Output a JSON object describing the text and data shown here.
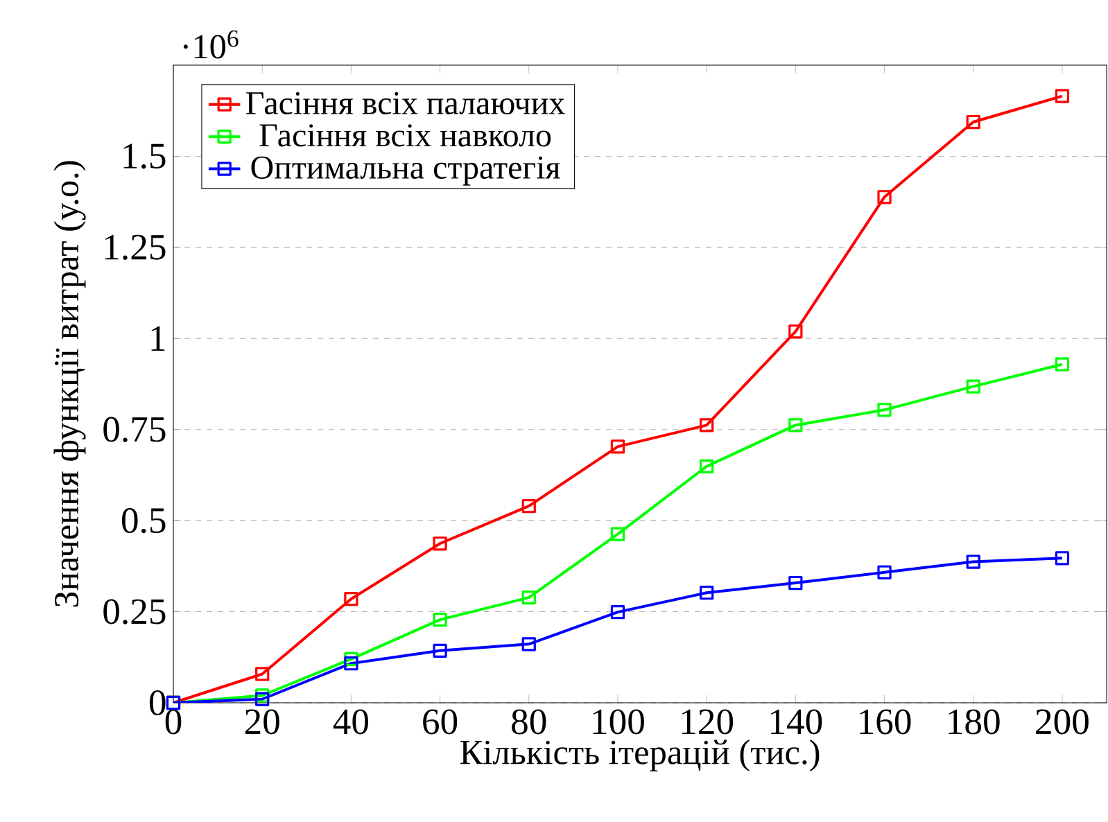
{
  "chart_data": {
    "type": "line",
    "xlabel": "Кількість ітерацій (тис.)",
    "ylabel": "Значення функції витрат (у.о.)",
    "annotations": [
      "·10$^{6}$"
    ],
    "x": [
      0,
      20,
      40,
      60,
      80,
      100,
      120,
      140,
      160,
      180,
      200
    ],
    "series": [
      {
        "name": "Гасіння всіх палаючих",
        "color": "#ff0000",
        "values": [
          0,
          0.079,
          0.285,
          0.437,
          0.54,
          0.703,
          0.762,
          1.019,
          1.388,
          1.594,
          1.665
        ]
      },
      {
        "name": "Гасіння всіх навколо",
        "color": "#00ff00",
        "values": [
          0,
          0.02,
          0.12,
          0.228,
          0.289,
          0.463,
          0.649,
          0.762,
          0.804,
          0.868,
          0.929
        ]
      },
      {
        "name": "Оптимальна стратегія",
        "color": "#0000ff",
        "values": [
          0,
          0.01,
          0.108,
          0.143,
          0.161,
          0.249,
          0.302,
          0.329,
          0.358,
          0.387,
          0.397
        ]
      }
    ],
    "xlim": [
      0,
      210
    ],
    "ylim": [
      0,
      1.75
    ],
    "xticks": [
      0,
      20,
      40,
      60,
      80,
      100,
      120,
      140,
      160,
      180,
      200
    ],
    "yticks": [
      0,
      0.25,
      0.5,
      0.75,
      1,
      1.25,
      1.5
    ],
    "grid": "y",
    "legend": "top left",
    "marker": "square",
    "line_style": "solid"
  }
}
